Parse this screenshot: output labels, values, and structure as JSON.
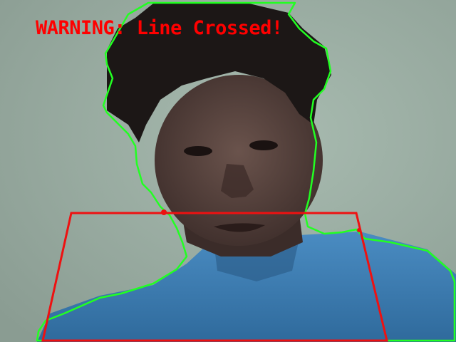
{
  "overlay": {
    "warning_text": "WARNING: Line Crossed!",
    "warning_color": "#ff0000",
    "zone_color": "#ee1111",
    "contour_color": "#22ff22"
  },
  "scene": {
    "background_color": "#9fb2a6",
    "hair_color": "#1c1716",
    "skin_color": "#5a4540",
    "shirt_color": "#3c7fb4"
  }
}
